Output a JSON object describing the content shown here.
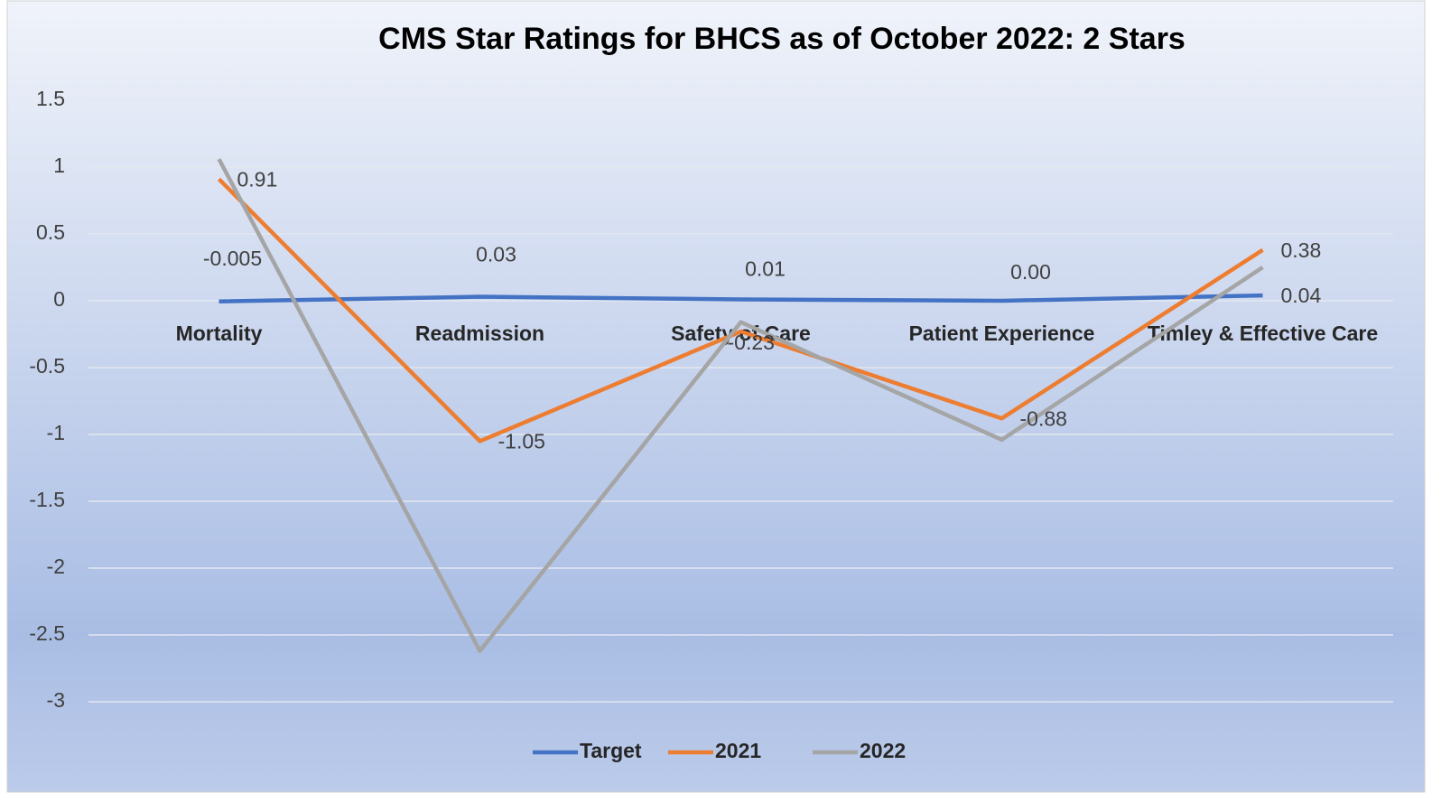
{
  "chart_data": {
    "type": "line",
    "title": "CMS Star Ratings for BHCS as of October 2022: 2 Stars",
    "categories": [
      "Mortality",
      "Readmission",
      "Safety of Care",
      "Patient Experience",
      "Timley & Effective Care"
    ],
    "series": [
      {
        "name": "Target",
        "color": "#4472c4",
        "values": [
          -0.005,
          0.03,
          0.01,
          0,
          0.04
        ],
        "value_labels": [
          "-0.005",
          "0.03",
          "0.01",
          "0.00",
          "0.04"
        ]
      },
      {
        "name": "2021",
        "color": "#ed7d31",
        "values": [
          0.91,
          -1.05,
          -0.23,
          -0.88,
          0.38
        ]
      },
      {
        "name": "2022",
        "color": "#a5a5a5",
        "values": [
          1.06,
          -2.62,
          -0.16,
          -1.04,
          0.25
        ]
      }
    ],
    "ylim": [
      -3,
      1.5
    ],
    "yticks": [
      -3,
      -2.5,
      -2,
      -1.5,
      -1,
      -0.5,
      0,
      0.5,
      1,
      1.5
    ],
    "grid": true,
    "legend": "bottom"
  }
}
